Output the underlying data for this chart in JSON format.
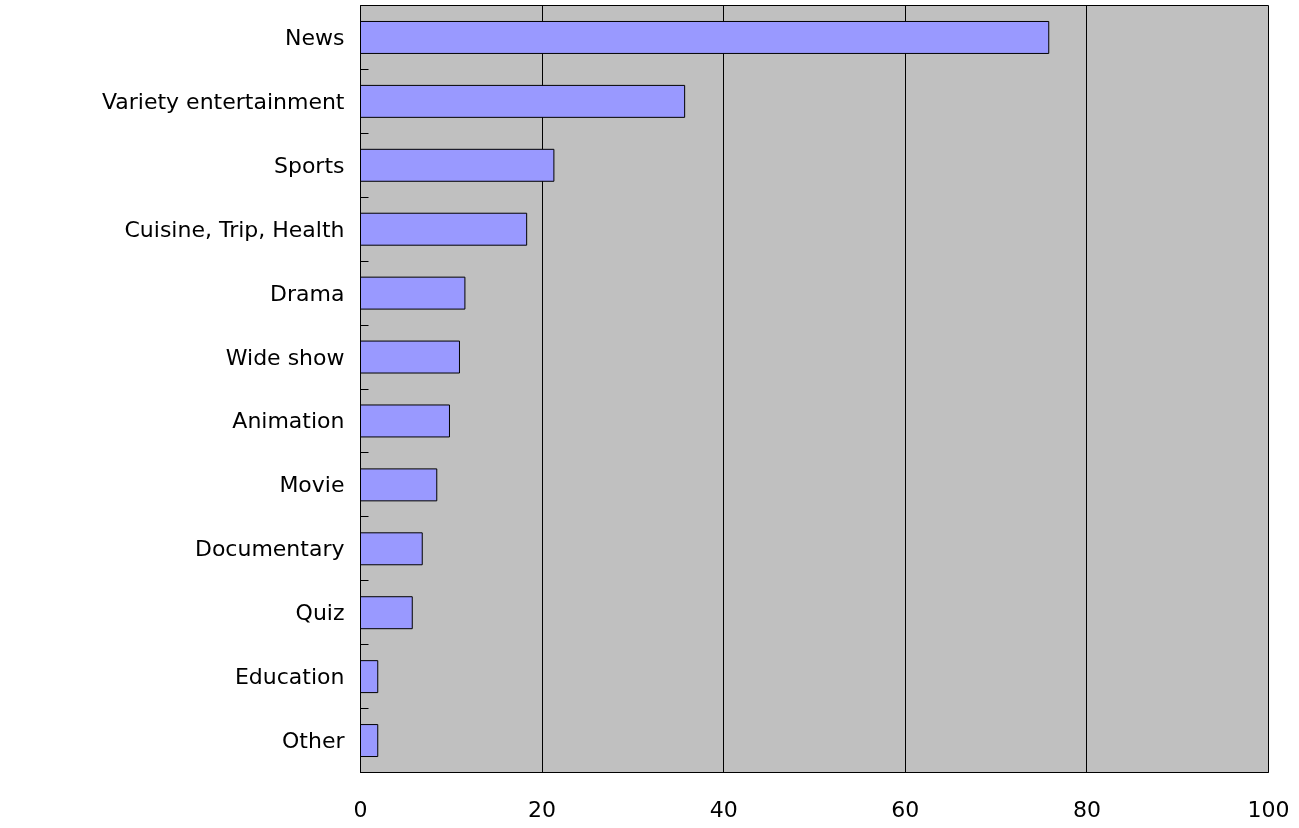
{
  "chart_data": {
    "type": "bar",
    "orientation": "horizontal",
    "categories": [
      "News",
      "Variety entertainment",
      "Sports",
      "Cuisine, Trip, Health",
      "Drama",
      "Wide show",
      "Animation",
      "Movie",
      "Documentary",
      "Quiz",
      "Education",
      "Other"
    ],
    "values": [
      75.8,
      35.7,
      21.3,
      18.3,
      11.5,
      10.9,
      9.8,
      8.4,
      6.8,
      5.7,
      1.9,
      1.9
    ],
    "color": "#9999ff",
    "xlim": [
      0,
      100
    ],
    "xticks": [
      0,
      20,
      40,
      60,
      80,
      100
    ],
    "grid": "x"
  }
}
